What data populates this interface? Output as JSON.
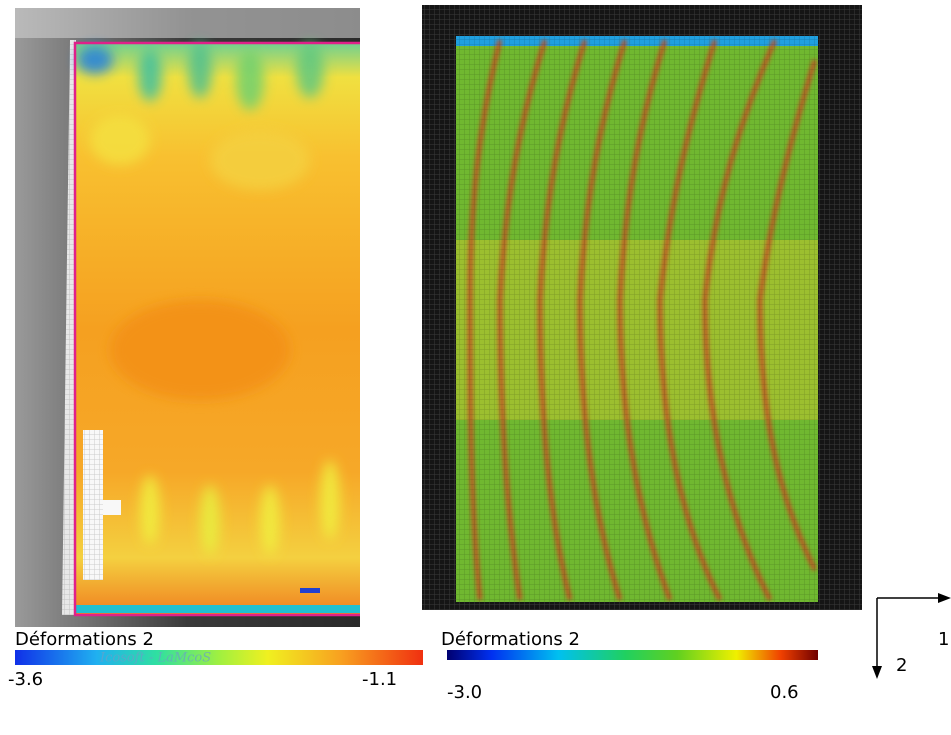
{
  "panels": [
    {
      "caption": "Déformations 2",
      "colorbar": {
        "min_label": "-3.6",
        "max_label": "-1.1",
        "watermark": "Icosoft - LaMcoS"
      }
    },
    {
      "caption": "Déformations 2",
      "colorbar": {
        "min_label": "-3.0",
        "max_label": "0.6"
      }
    }
  ],
  "axes": {
    "horizontal_label": "1",
    "vertical_label": "2"
  }
}
